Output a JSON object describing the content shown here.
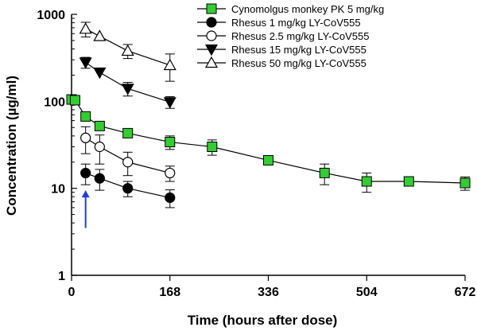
{
  "chart_data": {
    "type": "scatter",
    "title": "",
    "xlabel": "Time (hours after dose)",
    "ylabel": "Concentration (µg/ml)",
    "xscale": "linear",
    "yscale": "log",
    "xlim": [
      0,
      672
    ],
    "ylim": [
      1,
      1000
    ],
    "xticks": [
      0,
      168,
      336,
      504,
      672
    ],
    "xtick_labels": [
      "0",
      "168",
      "336",
      "504",
      "672"
    ],
    "yticks": [
      1,
      10,
      100,
      1000
    ],
    "ytick_labels": [
      "1",
      "10",
      "100",
      "1000"
    ],
    "legend_position": "top-right",
    "annotations": [
      {
        "type": "arrow",
        "direction": "up",
        "x": 24,
        "from_y": 3.5,
        "to_y": 9.5,
        "color": "#1f3fd6"
      }
    ],
    "series": [
      {
        "name": "Cynomolgus monkey PK 5 mg/kg",
        "marker": "square",
        "fill": "#33cc33",
        "stroke": "#000000",
        "x": [
          0,
          6,
          24,
          48,
          96,
          168,
          240,
          336,
          432,
          504,
          576,
          672
        ],
        "y": [
          105,
          103,
          67,
          52,
          43,
          34,
          30,
          21,
          15,
          12,
          12,
          11.5
        ],
        "err": [
          0,
          0,
          0,
          5,
          0,
          6,
          6,
          0,
          4,
          3,
          0,
          2
        ]
      },
      {
        "name": "Rhesus 1 mg/kg LY-CoV555",
        "marker": "circle",
        "fill": "#000000",
        "stroke": "#000000",
        "x": [
          24,
          48,
          96,
          168
        ],
        "y": [
          15,
          13,
          10,
          7.8
        ],
        "err": [
          4,
          3.5,
          2,
          1.8
        ]
      },
      {
        "name": "Rhesus 2.5 mg/kg LY-CoV555",
        "marker": "circle",
        "fill": "#ffffff",
        "stroke": "#000000",
        "x": [
          24,
          48,
          96,
          168
        ],
        "y": [
          38,
          30,
          20,
          15
        ],
        "err": [
          13,
          11,
          6,
          3
        ]
      },
      {
        "name": "Rhesus 15 mg/kg LY-CoV555",
        "marker": "triangle-down",
        "fill": "#000000",
        "stroke": "#000000",
        "x": [
          24,
          48,
          96,
          168
        ],
        "y": [
          280,
          215,
          140,
          98
        ],
        "err": [
          40,
          0,
          25,
          15
        ]
      },
      {
        "name": "Rhesus 50 mg/kg LY-CoV555",
        "marker": "triangle-up",
        "fill": "#ffffff",
        "stroke": "#000000",
        "x": [
          24,
          48,
          96,
          168
        ],
        "y": [
          680,
          560,
          380,
          260
        ],
        "err": [
          130,
          0,
          70,
          90
        ]
      }
    ]
  }
}
